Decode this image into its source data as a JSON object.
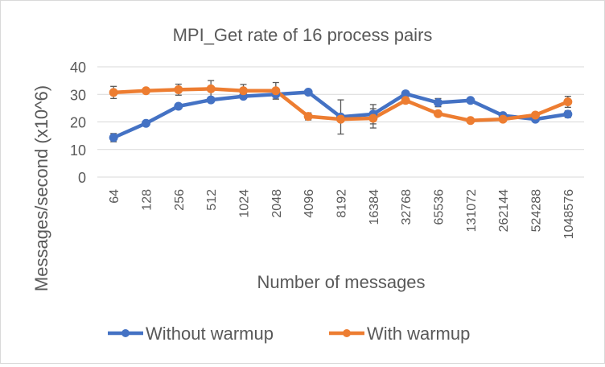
{
  "chart_data": {
    "type": "line",
    "title": "MPI_Get rate of 16 process pairs",
    "xlabel": "Number of messages",
    "ylabel": "Messages/second (x10^6)",
    "categories": [
      "64",
      "128",
      "256",
      "512",
      "1024",
      "2048",
      "4096",
      "8192",
      "16384",
      "32768",
      "65536",
      "131072",
      "262144",
      "524288",
      "1048576"
    ],
    "yticks": [
      "0",
      "10",
      "20",
      "30",
      "40"
    ],
    "ylim": [
      0,
      40
    ],
    "grid": true,
    "legend_position": "bottom",
    "series": [
      {
        "name": "Without warmup",
        "color": "#4472C4",
        "values": [
          14.3,
          19.5,
          25.7,
          28.0,
          29.3,
          30.0,
          30.8,
          21.8,
          22.8,
          30.2,
          27.0,
          27.8,
          22.3,
          21.0,
          22.8
        ],
        "errors": [
          1.5,
          0,
          0,
          0,
          0,
          1.7,
          0,
          6.2,
          3.5,
          0,
          1.5,
          0,
          0,
          0,
          1.2
        ]
      },
      {
        "name": "With warmup",
        "color": "#ED7D31",
        "values": [
          30.7,
          31.3,
          31.7,
          32.0,
          31.3,
          31.3,
          22.0,
          21.0,
          21.3,
          27.8,
          23.0,
          20.5,
          21.0,
          22.5,
          27.3
        ],
        "errors": [
          2.2,
          0,
          2.0,
          3.0,
          2.3,
          3.0,
          1.3,
          0,
          3.5,
          0,
          0,
          0,
          0,
          0,
          2.0
        ]
      }
    ]
  }
}
